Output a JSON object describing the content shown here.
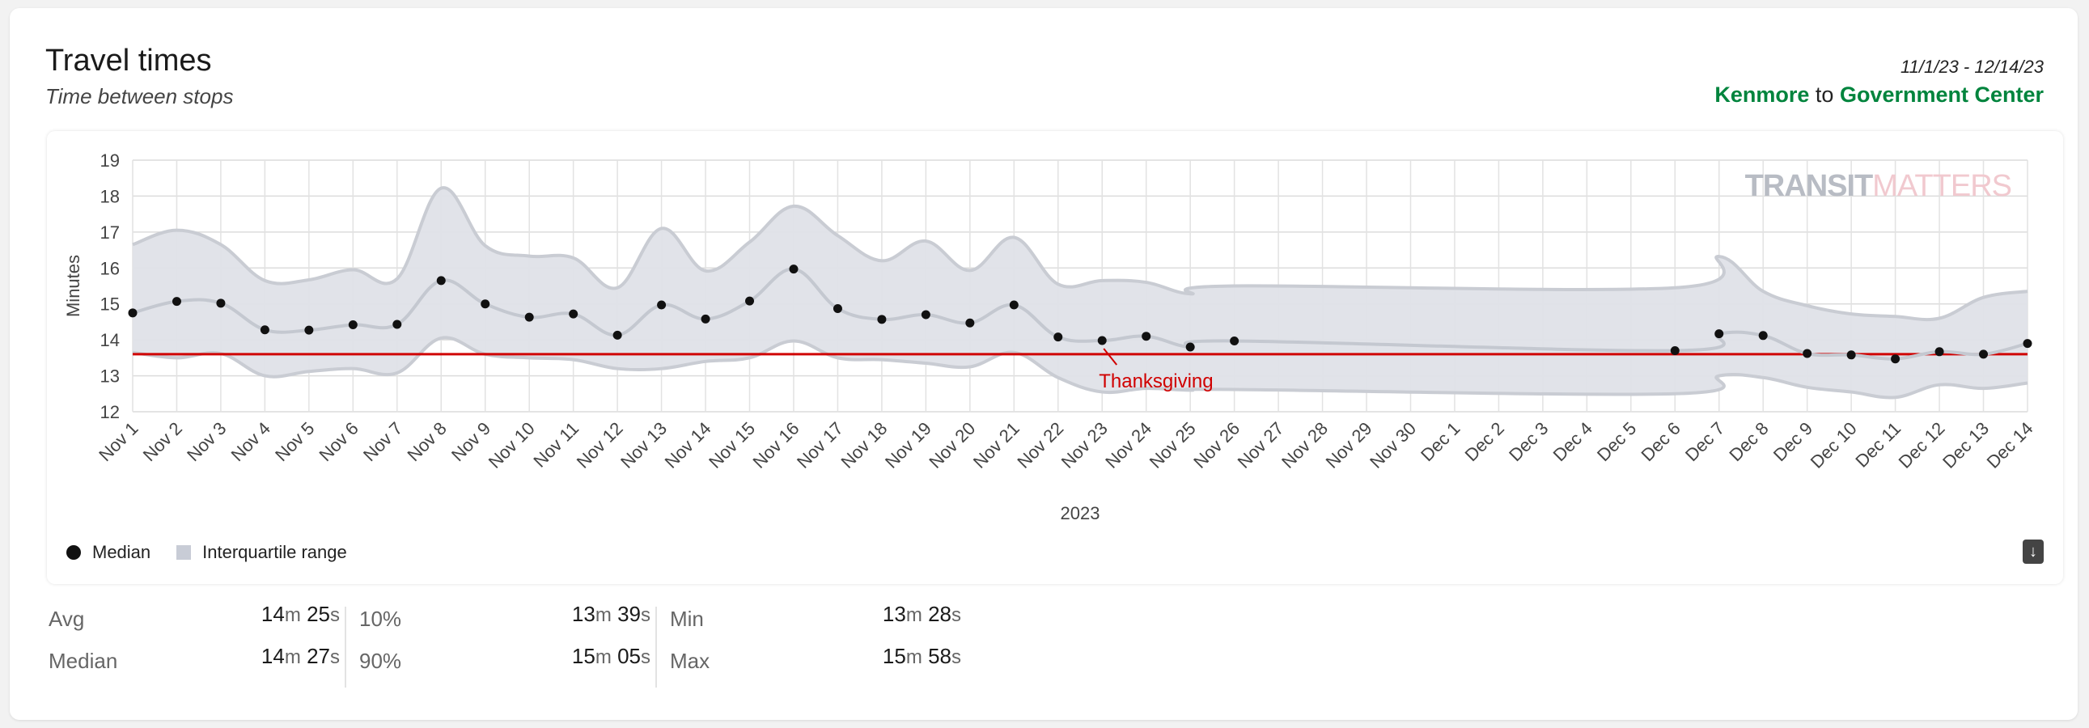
{
  "header": {
    "title": "Travel times",
    "subtitle": "Time between stops",
    "date_range": "11/1/23 - 12/14/23",
    "from_station": "Kenmore",
    "to_word": "to",
    "to_station": "Government Center"
  },
  "legend": {
    "median_label": "Median",
    "iqr_label": "Interquartile range"
  },
  "watermark": {
    "part1": "TRANSIT",
    "part2": "MATTERS"
  },
  "icons": {
    "download": "download-icon"
  },
  "colors": {
    "station_green": "#00843d",
    "benchmark_red": "#d00000",
    "iqr_fill": "#dfe2e8",
    "median_line": "#c4c8d0",
    "median_dot": "#111111",
    "watermark_gray": "#b8bcc4",
    "watermark_pink": "#f1c9cf"
  },
  "stats": {
    "avg": {
      "label": "Avg",
      "min": "14",
      "sec": "25"
    },
    "median": {
      "label": "Median",
      "min": "14",
      "sec": "27"
    },
    "p10": {
      "label": "10%",
      "min": "13",
      "sec": "39"
    },
    "p90": {
      "label": "90%",
      "min": "15",
      "sec": "05"
    },
    "minv": {
      "label": "Min",
      "min": "13",
      "sec": "28"
    },
    "maxv": {
      "label": "Max",
      "min": "15",
      "sec": "58"
    },
    "unit_m": "m",
    "unit_s": "s"
  },
  "chart_data": {
    "type": "line",
    "title": "",
    "xlabel": "2023",
    "ylabel": "Minutes",
    "ylim": [
      12,
      19
    ],
    "yticks": [
      12,
      13,
      14,
      15,
      16,
      17,
      18,
      19
    ],
    "grid": true,
    "legend_position": "bottom-left",
    "categories": [
      "Nov 1",
      "Nov 2",
      "Nov 3",
      "Nov 4",
      "Nov 5",
      "Nov 6",
      "Nov 7",
      "Nov 8",
      "Nov 9",
      "Nov 10",
      "Nov 11",
      "Nov 12",
      "Nov 13",
      "Nov 14",
      "Nov 15",
      "Nov 16",
      "Nov 17",
      "Nov 18",
      "Nov 19",
      "Nov 20",
      "Nov 21",
      "Nov 22",
      "Nov 23",
      "Nov 24",
      "Nov 25",
      "Nov 26",
      "Nov 27",
      "Nov 28",
      "Nov 29",
      "Nov 30",
      "Dec 1",
      "Dec 2",
      "Dec 3",
      "Dec 4",
      "Dec 5",
      "Dec 6",
      "Dec 7",
      "Dec 8",
      "Dec 9",
      "Dec 10",
      "Dec 11",
      "Dec 12",
      "Dec 13",
      "Dec 14"
    ],
    "series": [
      {
        "name": "Median",
        "values": [
          14.75,
          15.07,
          15.02,
          14.28,
          14.27,
          14.42,
          14.43,
          15.65,
          15.0,
          14.63,
          14.72,
          14.13,
          14.97,
          14.58,
          15.08,
          15.97,
          14.87,
          14.57,
          14.7,
          14.47,
          14.97,
          14.08,
          13.98,
          14.1,
          13.8,
          13.97,
          null,
          null,
          null,
          null,
          null,
          null,
          null,
          null,
          null,
          13.7,
          14.17,
          14.12,
          13.62,
          13.58,
          13.47,
          13.67,
          13.6,
          13.9
        ]
      },
      {
        "name": "Interquartile range",
        "q1": [
          13.65,
          13.5,
          13.62,
          13.0,
          13.12,
          13.2,
          13.08,
          14.05,
          13.6,
          13.5,
          13.45,
          13.2,
          13.2,
          13.4,
          13.5,
          13.97,
          13.5,
          13.45,
          13.35,
          13.25,
          13.65,
          12.95,
          12.55,
          12.65,
          12.6,
          12.62,
          null,
          null,
          null,
          null,
          null,
          null,
          null,
          null,
          null,
          12.5,
          13.0,
          12.95,
          12.68,
          12.55,
          12.4,
          12.75,
          12.65,
          12.8
        ],
        "q3": [
          16.65,
          17.05,
          16.65,
          15.65,
          15.67,
          15.95,
          15.7,
          18.22,
          16.62,
          16.33,
          16.28,
          15.45,
          17.1,
          15.92,
          16.72,
          17.72,
          16.9,
          16.2,
          16.75,
          15.93,
          16.85,
          15.55,
          15.65,
          15.6,
          15.28,
          15.5,
          null,
          null,
          null,
          null,
          null,
          null,
          null,
          null,
          null,
          15.45,
          16.32,
          15.35,
          14.95,
          14.72,
          14.65,
          14.6,
          15.18,
          15.35
        ]
      }
    ],
    "benchmark": {
      "value": 13.6,
      "color": "#d00000"
    },
    "annotation": {
      "text": "Thanksgiving",
      "category": "Nov 23"
    }
  }
}
